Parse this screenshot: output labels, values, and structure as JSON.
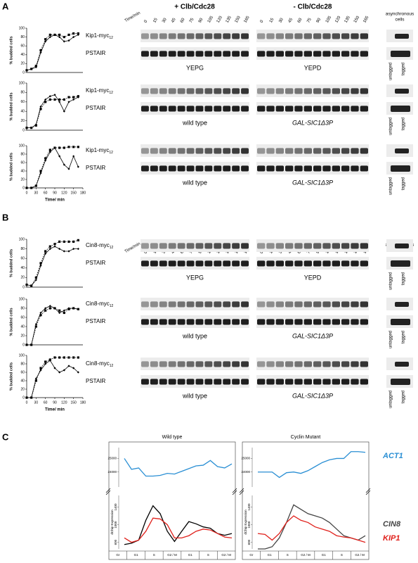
{
  "panel_labels": [
    "A",
    "B",
    "C"
  ],
  "blots": {
    "conditions": [
      "+ Clb/Cdc28",
      "- Clb/Cdc28"
    ],
    "time_label": "Time/min",
    "lane_times": [
      0,
      15,
      30,
      45,
      60,
      75,
      90,
      105,
      120,
      135,
      150,
      165
    ],
    "async_label": [
      "asynchronous",
      "cells"
    ],
    "media": [
      "YEPG",
      "YEPD"
    ],
    "strains": [
      "wild type",
      "GAL-SIC1Δ3P"
    ],
    "controls": [
      "untagged",
      "tagged"
    ],
    "loading": "PSTAIR",
    "proteins": [
      {
        "name": "Kip1-myc",
        "sub": "12"
      },
      {
        "name": "Cin8-myc",
        "sub": "12"
      }
    ]
  },
  "chart_data": [
    {
      "type": "line",
      "ylabel": "% budded cells",
      "x": [
        0,
        15,
        30,
        45,
        60,
        75,
        90,
        105,
        120,
        135,
        150,
        165
      ],
      "xlim": [
        0,
        180
      ],
      "ylim": [
        0,
        100
      ],
      "yticks": [
        0,
        20,
        40,
        60,
        80,
        100
      ],
      "series": [
        {
          "color": "#000000",
          "marker": "square",
          "dashed": true,
          "values": [
            5,
            8,
            15,
            50,
            75,
            85,
            85,
            85,
            80,
            85,
            88,
            88
          ]
        },
        {
          "color": "#000000",
          "marker": "diamond",
          "dashed": false,
          "values": [
            5,
            8,
            12,
            45,
            70,
            80,
            85,
            80,
            70,
            72,
            80,
            85
          ]
        }
      ]
    },
    {
      "type": "line",
      "ylabel": "% budded cells",
      "x": [
        0,
        15,
        30,
        45,
        60,
        75,
        90,
        105,
        120,
        135,
        150,
        165
      ],
      "xlim": [
        0,
        180
      ],
      "ylim": [
        0,
        100
      ],
      "yticks": [
        0,
        20,
        40,
        60,
        80,
        100
      ],
      "series": [
        {
          "color": "#000000",
          "marker": "square",
          "dashed": true,
          "values": [
            5,
            5,
            10,
            45,
            60,
            65,
            65,
            65,
            65,
            70,
            70,
            72
          ]
        },
        {
          "color": "#000000",
          "marker": "diamond",
          "dashed": false,
          "values": [
            5,
            5,
            12,
            50,
            65,
            72,
            75,
            60,
            40,
            60,
            65,
            70
          ]
        }
      ]
    },
    {
      "type": "line",
      "ylabel": "% budded cells",
      "xlabel": "Time/ min",
      "x": [
        0,
        15,
        30,
        45,
        60,
        75,
        90,
        105,
        120,
        135,
        150,
        165
      ],
      "xlim": [
        0,
        180
      ],
      "xticks": [
        0,
        30,
        60,
        90,
        120,
        150,
        180
      ],
      "ylim": [
        0,
        100
      ],
      "yticks": [
        0,
        20,
        40,
        60,
        80,
        100
      ],
      "series": [
        {
          "color": "#000000",
          "marker": "square",
          "dashed": true,
          "values": [
            0,
            0,
            5,
            40,
            70,
            90,
            95,
            95,
            95,
            97,
            97,
            97
          ]
        },
        {
          "color": "#000000",
          "marker": "diamond",
          "dashed": false,
          "values": [
            0,
            0,
            5,
            35,
            65,
            85,
            95,
            75,
            55,
            45,
            75,
            50
          ]
        }
      ]
    },
    {
      "type": "line",
      "ylabel": "% budded cells",
      "x": [
        0,
        15,
        30,
        45,
        60,
        75,
        90,
        105,
        120,
        135,
        150,
        165
      ],
      "xlim": [
        0,
        180
      ],
      "ylim": [
        0,
        100
      ],
      "yticks": [
        0,
        20,
        40,
        60,
        80,
        100
      ],
      "series": [
        {
          "color": "#000000",
          "marker": "square",
          "dashed": true,
          "values": [
            5,
            3,
            20,
            50,
            75,
            85,
            90,
            95,
            95,
            95,
            95,
            98
          ]
        },
        {
          "color": "#000000",
          "marker": "diamond",
          "dashed": false,
          "values": [
            5,
            3,
            15,
            45,
            70,
            80,
            85,
            80,
            75,
            75,
            80,
            80
          ]
        }
      ]
    },
    {
      "type": "line",
      "ylabel": "% budded cells",
      "x": [
        0,
        15,
        30,
        45,
        60,
        75,
        90,
        105,
        120,
        135,
        150,
        165
      ],
      "xlim": [
        0,
        180
      ],
      "ylim": [
        0,
        100
      ],
      "yticks": [
        0,
        20,
        40,
        60,
        80,
        100
      ],
      "series": [
        {
          "color": "#000000",
          "marker": "square",
          "dashed": true,
          "values": [
            0,
            0,
            40,
            65,
            75,
            80,
            80,
            75,
            70,
            78,
            80,
            78
          ]
        },
        {
          "color": "#000000",
          "marker": "diamond",
          "dashed": false,
          "values": [
            0,
            0,
            45,
            70,
            80,
            85,
            80,
            70,
            75,
            80,
            80,
            78
          ]
        }
      ]
    },
    {
      "type": "line",
      "ylabel": "% budded cells",
      "xlabel": "Time/ min",
      "x": [
        0,
        15,
        30,
        45,
        60,
        75,
        90,
        105,
        120,
        135,
        150,
        165
      ],
      "xlim": [
        0,
        180
      ],
      "xticks": [
        0,
        30,
        60,
        90,
        120,
        150,
        180
      ],
      "ylim": [
        0,
        100
      ],
      "yticks": [
        0,
        20,
        40,
        60,
        80,
        100
      ],
      "series": [
        {
          "color": "#000000",
          "marker": "square",
          "dashed": true,
          "values": [
            0,
            0,
            40,
            70,
            85,
            90,
            95,
            95,
            95,
            95,
            95,
            95
          ]
        },
        {
          "color": "#000000",
          "marker": "diamond",
          "dashed": false,
          "values": [
            0,
            0,
            45,
            65,
            80,
            88,
            70,
            60,
            65,
            75,
            70,
            60
          ]
        }
      ]
    },
    {
      "type": "broken-line",
      "title": "Wild type",
      "ylabel": "dChip Expression",
      "phases": [
        "Gr",
        "G1",
        "S",
        "G2 / M",
        "G1",
        "S",
        "G2 / M"
      ],
      "categories": [
        null,
        null,
        null,
        null,
        null,
        null,
        null,
        null,
        null,
        null,
        null,
        null,
        null,
        null,
        null,
        null
      ],
      "ylim": [
        450,
        1600
      ],
      "yticks": [
        600,
        1000,
        1400
      ],
      "y2lim": [
        23000,
        25800
      ],
      "y2ticks": [
        24000,
        25000
      ],
      "series": [
        {
          "color": "#2a8fd4",
          "axis": "y2",
          "values": [
            25000,
            24200,
            24300,
            23700,
            23700,
            23750,
            23900,
            23850,
            24050,
            24250,
            24450,
            24500,
            24850,
            24400,
            24300,
            24600
          ]
        },
        {
          "color": "#000000",
          "values": [
            550,
            580,
            650,
            1100,
            1430,
            1250,
            850,
            620,
            850,
            1070,
            1020,
            950,
            920,
            800,
            760,
            800
          ]
        },
        {
          "color": "#e0201b",
          "values": [
            700,
            600,
            650,
            850,
            1150,
            1130,
            1000,
            700,
            700,
            750,
            850,
            900,
            880,
            800,
            720,
            700
          ]
        }
      ]
    },
    {
      "type": "broken-line",
      "title": "Cyclin Mutant",
      "ylabel": "dChip Expression",
      "phases": [
        "Gr",
        "G1",
        "S",
        "G2 / M",
        "G1",
        "S",
        "G2 / M"
      ],
      "categories": [
        null,
        null,
        null,
        null,
        null,
        null,
        null,
        null,
        null,
        null,
        null,
        null,
        null,
        null,
        null,
        null
      ],
      "ylim": [
        450,
        1600
      ],
      "yticks": [
        600,
        1000,
        1400
      ],
      "y2lim": [
        23000,
        25800
      ],
      "y2ticks": [
        24000,
        25000
      ],
      "series": [
        {
          "name": "ACT1",
          "color": "#2a8fd4",
          "axis": "y2",
          "values": [
            24000,
            24000,
            24000,
            23600,
            23950,
            24000,
            23900,
            24100,
            24400,
            24700,
            24900,
            25000,
            25000,
            25500,
            25500,
            25450
          ]
        },
        {
          "name": "CIN8",
          "color": "#444444",
          "values": [
            450,
            450,
            500,
            700,
            1050,
            1450,
            1350,
            1250,
            1200,
            1150,
            1050,
            900,
            750,
            700,
            650,
            750
          ]
        },
        {
          "name": "KIP1",
          "color": "#e0201b",
          "values": [
            800,
            780,
            650,
            800,
            1050,
            1200,
            1100,
            1050,
            950,
            900,
            850,
            750,
            720,
            700,
            650,
            600
          ]
        }
      ]
    }
  ]
}
